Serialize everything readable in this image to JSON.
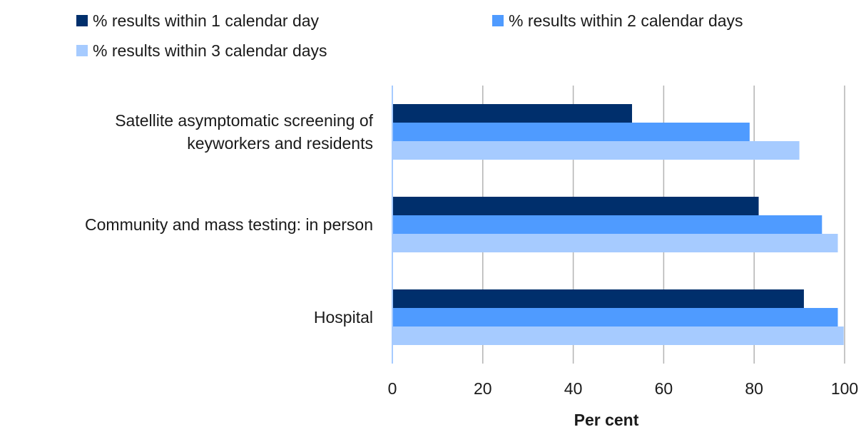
{
  "chart_data": {
    "type": "bar",
    "orientation": "horizontal",
    "title": "",
    "xlabel": "Per cent",
    "ylabel": "",
    "xlim": [
      0,
      100
    ],
    "x_ticks": [
      "0",
      "20",
      "40",
      "60",
      "80",
      "100"
    ],
    "grid": "vertical",
    "legend_placement": "top",
    "categories": [
      [
        "Satellite asymptomatic screening of",
        "keyworkers and residents"
      ],
      [
        "Community and mass testing: in person"
      ],
      [
        "Hospital"
      ]
    ],
    "series": [
      {
        "name": "% results within 1 calendar day",
        "color": "#002f6c",
        "values": [
          53,
          81,
          91
        ]
      },
      {
        "name": "% results within 2 calendar days",
        "color": "#4f9bff",
        "values": [
          79,
          95,
          98.5
        ]
      },
      {
        "name": "% results within 3 calendar days",
        "color": "#a6cbff",
        "values": [
          90,
          98.5,
          99.8
        ]
      }
    ],
    "colors": {
      "grid": "#b3b3b3",
      "axis": "#a6cbff",
      "text": "#1a1a1a"
    }
  }
}
